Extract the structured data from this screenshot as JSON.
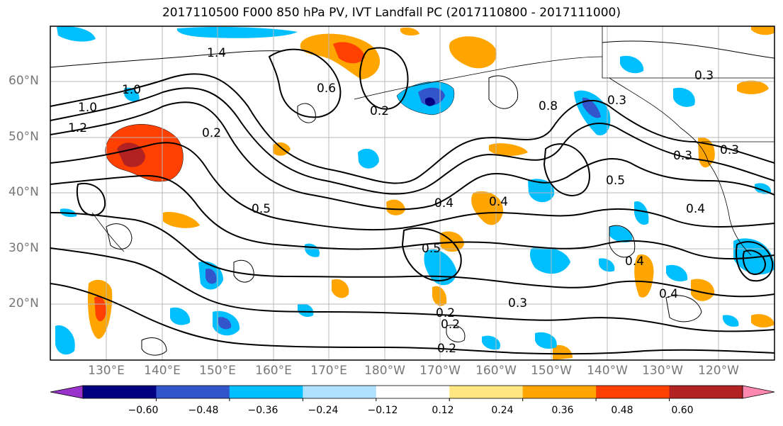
{
  "title": "2017110500 F000 850 hPa PV, IVT Landfall PC (2017110800 - 2017111000)",
  "lat_labels": [
    "60°N",
    "50°N",
    "40°N",
    "30°N",
    "20°N"
  ],
  "lon_labels": [
    "130°E",
    "140°E",
    "150°E",
    "160°E",
    "170°E",
    "180°W",
    "170°W",
    "160°W",
    "150°W",
    "140°W",
    "130°W",
    "120°W"
  ],
  "colorbar": {
    "ticks": [
      "−0.60",
      "−0.48",
      "−0.36",
      "−0.24",
      "−0.12",
      "0.12",
      "0.24",
      "0.36",
      "0.48",
      "0.60"
    ],
    "colors": [
      "#9933cc",
      "#000080",
      "#3355cc",
      "#00bfff",
      "#b0e0ff",
      "#ffffff",
      "#ffe680",
      "#ffa500",
      "#ff4000",
      "#b22222",
      "#ff88b0"
    ]
  },
  "contour_labels": [
    "1.4",
    "1.0",
    "1.0",
    "1.2",
    "0.2",
    "0.6",
    "0.2",
    "0.8",
    "0.3",
    "0.3",
    "0.5",
    "0.4",
    "0.4",
    "0.5",
    "0.2",
    "0.2",
    "0.2",
    "0.3",
    "0.4",
    "0.4",
    "0.3",
    "0.5",
    "0.4",
    "0.3"
  ]
}
